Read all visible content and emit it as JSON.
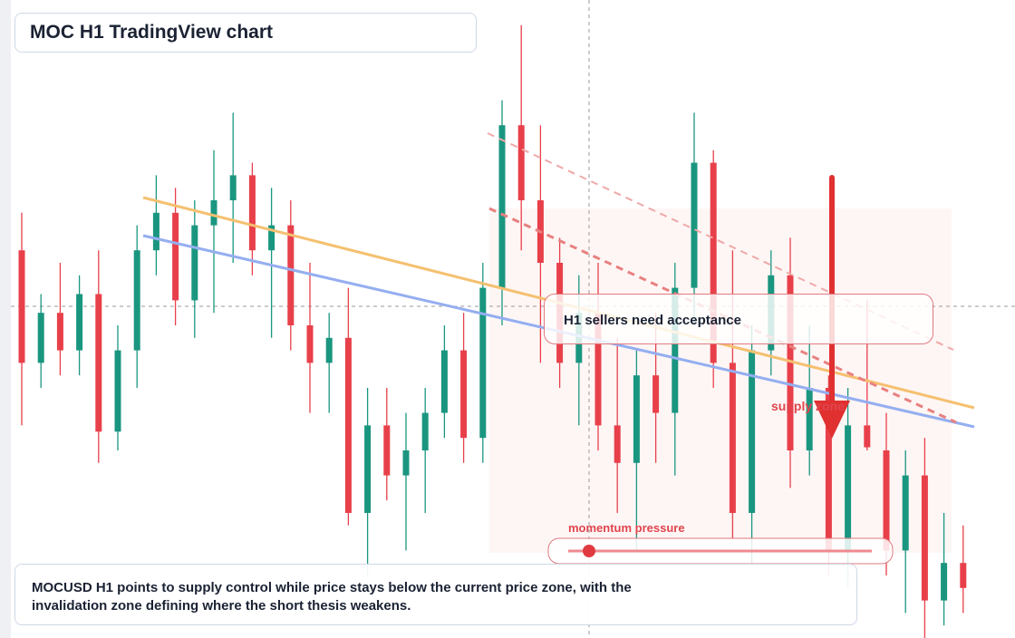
{
  "header": {
    "title": "MOC H1 TradingView chart"
  },
  "chart": {
    "candles": [
      [
        62,
        68,
        34,
        44
      ],
      [
        44,
        55,
        40,
        52
      ],
      [
        52,
        60,
        42,
        46
      ],
      [
        46,
        58,
        42,
        55
      ],
      [
        55,
        62,
        28,
        33
      ],
      [
        33,
        50,
        30,
        46
      ],
      [
        46,
        66,
        40,
        62
      ],
      [
        62,
        74,
        58,
        68
      ],
      [
        68,
        72,
        50,
        54
      ],
      [
        54,
        70,
        48,
        66
      ],
      [
        66,
        78,
        52,
        70
      ],
      [
        70,
        84,
        60,
        74
      ],
      [
        74,
        76,
        58,
        62
      ],
      [
        62,
        72,
        48,
        66
      ],
      [
        66,
        70,
        46,
        50
      ],
      [
        50,
        60,
        36,
        44
      ],
      [
        44,
        52,
        36,
        48
      ],
      [
        48,
        56,
        18,
        20
      ],
      [
        20,
        40,
        10,
        34
      ],
      [
        34,
        40,
        22,
        26
      ],
      [
        26,
        36,
        14,
        30
      ],
      [
        30,
        40,
        20,
        36
      ],
      [
        36,
        50,
        32,
        46
      ],
      [
        46,
        52,
        28,
        32
      ],
      [
        32,
        60,
        28,
        56
      ],
      [
        56,
        86,
        50,
        82
      ],
      [
        82,
        98,
        62,
        70
      ],
      [
        70,
        82,
        44,
        60
      ],
      [
        60,
        64,
        40,
        44
      ],
      [
        44,
        58,
        34,
        52
      ],
      [
        52,
        60,
        30,
        34
      ],
      [
        34,
        48,
        20,
        28
      ],
      [
        28,
        46,
        14,
        42
      ],
      [
        42,
        52,
        28,
        36
      ],
      [
        36,
        60,
        26,
        56
      ],
      [
        56,
        84,
        50,
        76
      ],
      [
        76,
        78,
        40,
        44
      ],
      [
        44,
        62,
        16,
        20
      ],
      [
        20,
        50,
        12,
        46
      ],
      [
        46,
        62,
        42,
        58
      ],
      [
        58,
        64,
        24,
        30
      ],
      [
        30,
        50,
        26,
        40
      ],
      [
        40,
        42,
        10,
        14
      ],
      [
        14,
        40,
        8,
        34
      ],
      [
        34,
        54,
        30,
        30.5
      ],
      [
        30,
        36,
        10,
        14
      ],
      [
        14,
        30,
        4,
        26
      ],
      [
        26,
        32,
        0,
        6
      ],
      [
        6,
        20,
        2,
        12
      ],
      [
        12,
        18,
        4,
        8
      ]
    ]
  },
  "annotations": {
    "callout": "H1 sellers need acceptance",
    "zone_label": "supply zone",
    "momentum_label": "momentum pressure"
  },
  "footer": {
    "note": [
      "MOCUSD H1 points to supply control while price stays below the current price zone, with the",
      "invalidation zone defining where the short thesis weakens."
    ]
  }
}
